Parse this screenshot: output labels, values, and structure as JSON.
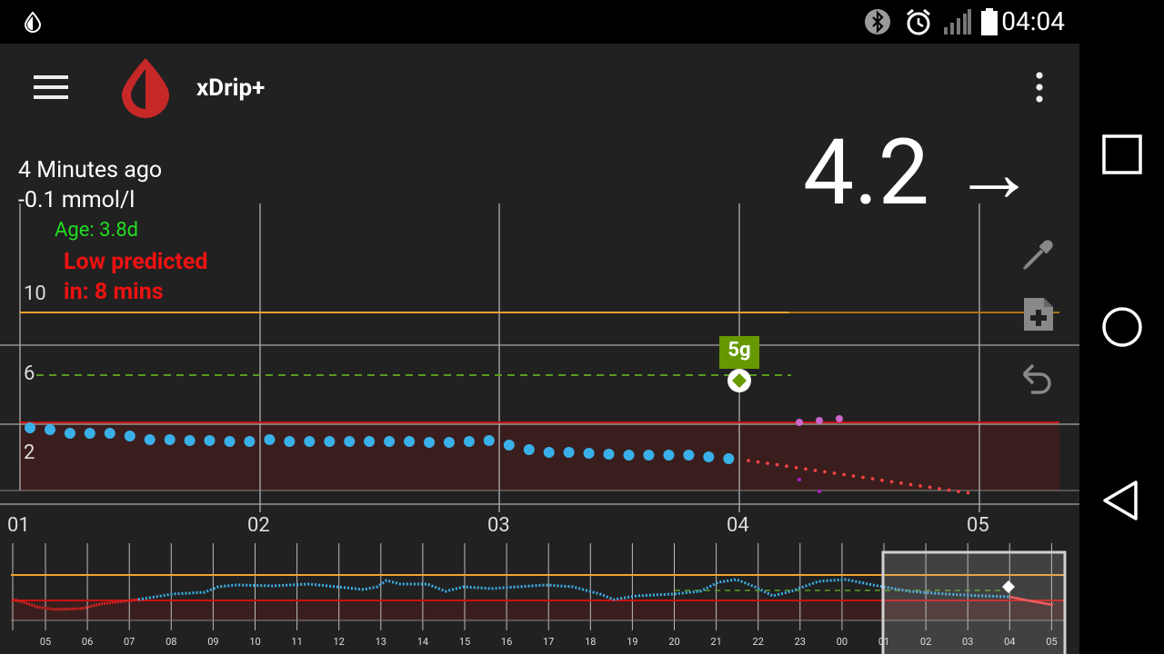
{
  "status_bar": {
    "time": "04:04",
    "icons": [
      "xdrip-notification-icon",
      "bluetooth-icon",
      "alarm-icon",
      "signal-icon",
      "battery-icon"
    ]
  },
  "toolbar": {
    "title": "xDrip+",
    "menu_icon": "hamburger-menu-icon",
    "logo_icon": "blood-drop-logo-icon",
    "overflow_icon": "more-vertical-icon"
  },
  "reading": {
    "value": "4.2",
    "trend_arrow": "→",
    "time_ago": "4 Minutes ago",
    "delta": "-0.1 mmol/l"
  },
  "sensor": {
    "age": "Age: 3.8d"
  },
  "alert": {
    "line1": "Low predicted",
    "line2": "in: 8 mins"
  },
  "side_icons": [
    "eyedropper-icon",
    "note-add-icon",
    "undo-icon"
  ],
  "treatment": {
    "label": "5g"
  },
  "main_chart": {
    "y_ticks": [
      "10",
      "6",
      "2"
    ],
    "x_ticks": [
      "01",
      "02",
      "03",
      "04",
      "05"
    ]
  },
  "preview_chart": {
    "x_ticks": [
      "05",
      "06",
      "07",
      "08",
      "09",
      "10",
      "11",
      "12",
      "13",
      "14",
      "15",
      "16",
      "17",
      "18",
      "19",
      "20",
      "21",
      "22",
      "23",
      "00",
      "01",
      "02",
      "03",
      "04",
      "05"
    ]
  },
  "nav_bar": {
    "icons": [
      "recents-square-icon",
      "home-circle-icon",
      "back-triangle-icon"
    ]
  },
  "colors": {
    "app_bg": "#212121",
    "reading_dot": "#3ab0e8",
    "high_line": "#f0a030",
    "low_line": "#cc1111",
    "low_zone": "#3a1e1e",
    "target_line": "#5a9a20",
    "treatment_bg": "#669900",
    "prediction": "#ff4444",
    "age_text": "#22dd22",
    "alert_text": "#ee1111"
  }
}
